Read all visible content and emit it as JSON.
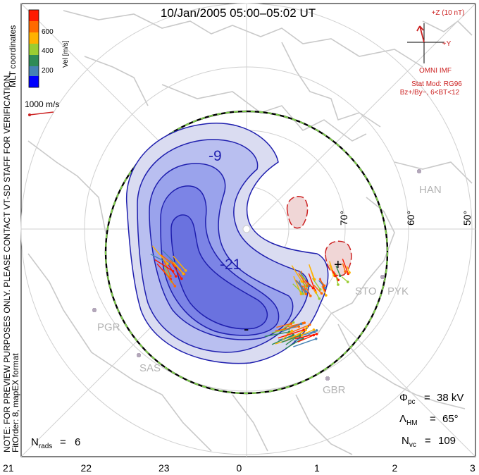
{
  "title": "10/Jan/2005 05:00–05:02 UT",
  "side_note": {
    "line1": "NOTE: FOR PREVIEW PURPOSES ONLY. PLEASE CONTACT VT-SD STAFF FOR VERIFICATION.",
    "line2": "FitOrder: 8, mapEX format",
    "coords": "MLT coordinates"
  },
  "colorbar": {
    "label": "Vel [m/s]",
    "ticks": [
      "600",
      "400",
      "200"
    ],
    "colors": [
      "#ff1a00",
      "#ff6a00",
      "#ffb200",
      "#9acd32",
      "#2e8b57",
      "#4682b4",
      "#0000ff"
    ]
  },
  "vector_scale": {
    "label": "1000 m/s"
  },
  "imf": {
    "z_label": "+Z (10 nT)",
    "y_label": "+Y",
    "line1": "OMNI IMF",
    "line2": "Stat Mod: RG96",
    "line3": "Bz+/By−, 6<BT<12"
  },
  "stations": [
    "HAN",
    "PYK",
    "STO",
    "PGR",
    "SAS",
    "GBR"
  ],
  "lat_labels": [
    "70°",
    "60°",
    "50°"
  ],
  "stats": {
    "phi_pc": "38 kV",
    "lambda_hm": "65°",
    "n_vc": "109",
    "n_rads": "6"
  },
  "chart_data": {
    "type": "polar contour map",
    "coordinate_system": "MLT",
    "mlt_ticks": [
      "21",
      "22",
      "23",
      "0",
      "1",
      "2",
      "3"
    ],
    "lat_ring_labels": [
      70,
      60,
      50
    ],
    "potential_contours_labels": [
      "-9",
      "-21",
      "-",
      "+"
    ],
    "fill_colors": [
      "#dadcf1",
      "#b9bff0",
      "#9aa3ec",
      "#7c84e6"
    ],
    "contour_color": "#1f1fae",
    "positive_cell_color": "#f0d6d6",
    "positive_contour_color": "#cc2222",
    "heppner_maynard_boundary_lat": 65,
    "cross_polar_cap_potential_kV": 38,
    "vectors_count": 109,
    "radars": 6
  }
}
